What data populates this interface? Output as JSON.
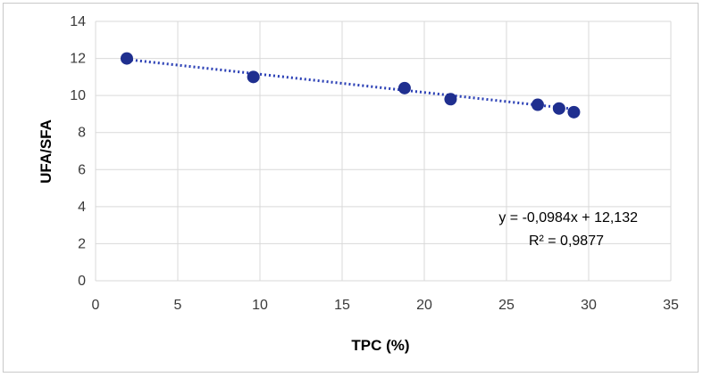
{
  "chart_data": {
    "type": "scatter",
    "xlabel": "TPC (%)",
    "ylabel": "UFA/SFA",
    "xlim": [
      0,
      35
    ],
    "ylim": [
      0,
      14
    ],
    "x_ticks": [
      "0",
      "5",
      "10",
      "15",
      "20",
      "25",
      "30",
      "35"
    ],
    "y_ticks": [
      "0",
      "2",
      "4",
      "6",
      "8",
      "10",
      "12",
      "14"
    ],
    "grid": true,
    "points": [
      {
        "x": 1.9,
        "y": 12.0
      },
      {
        "x": 9.6,
        "y": 11.0
      },
      {
        "x": 18.8,
        "y": 10.4
      },
      {
        "x": 21.6,
        "y": 9.8
      },
      {
        "x": 26.9,
        "y": 9.5
      },
      {
        "x": 28.2,
        "y": 9.3
      },
      {
        "x": 29.1,
        "y": 9.1
      }
    ],
    "trendline": {
      "type": "linear",
      "slope": -0.0984,
      "intercept": 12.132,
      "x_range": [
        1.9,
        29.1
      ],
      "style": "dotted"
    },
    "annotations": {
      "equation": "y = -0,0984x + 12,132",
      "r_squared": "R² = 0,9877"
    },
    "colors": {
      "marker": "#1f2f8f",
      "trendline": "#2a3fb5",
      "grid": "#d9d9d9"
    }
  }
}
